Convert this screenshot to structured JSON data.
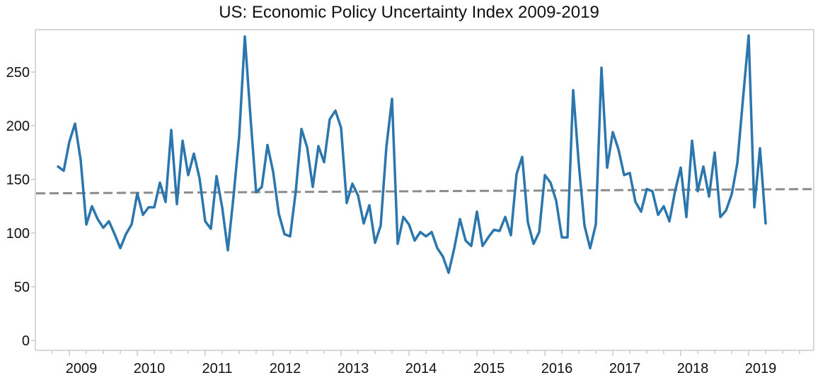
{
  "chart_data": {
    "type": "line",
    "title": "US: Economic Policy Uncertainty Index 2009-2019",
    "xlabel": "",
    "ylabel": "",
    "ylim": [
      0,
      290
    ],
    "x_tick_labels": [
      "2009",
      "2010",
      "2011",
      "2012",
      "2013",
      "2014",
      "2015",
      "2016",
      "2017",
      "2018",
      "2019"
    ],
    "y_tick_labels": [
      "0",
      "50",
      "100",
      "150",
      "200",
      "250"
    ],
    "y_ticks": [
      0,
      50,
      100,
      150,
      200,
      250
    ],
    "grid": false,
    "colors": {
      "series": "#2a76ad",
      "trend": "#8c8c8c"
    },
    "series": [
      {
        "x": [
          "2008-11",
          "2008-12",
          "2009-01",
          "2009-02",
          "2009-03",
          "2009-04",
          "2009-05",
          "2009-06",
          "2009-07",
          "2009-08",
          "2009-09",
          "2009-10",
          "2009-11",
          "2009-12",
          "2010-01",
          "2010-02",
          "2010-03",
          "2010-04",
          "2010-05",
          "2010-06",
          "2010-07",
          "2010-08",
          "2010-09",
          "2010-10",
          "2010-11",
          "2010-12",
          "2011-01",
          "2011-02",
          "2011-03",
          "2011-04",
          "2011-05",
          "2011-06",
          "2011-07",
          "2011-08",
          "2011-09",
          "2011-10",
          "2011-11",
          "2011-12",
          "2012-01",
          "2012-02",
          "2012-03",
          "2012-04",
          "2012-05",
          "2012-06",
          "2012-07",
          "2012-08",
          "2012-09",
          "2012-10",
          "2012-11",
          "2012-12",
          "2013-01",
          "2013-02",
          "2013-03",
          "2013-04",
          "2013-05",
          "2013-06",
          "2013-07",
          "2013-08",
          "2013-09",
          "2013-10",
          "2013-11",
          "2013-12",
          "2014-01",
          "2014-02",
          "2014-03",
          "2014-04",
          "2014-05",
          "2014-06",
          "2014-07",
          "2014-08",
          "2014-09",
          "2014-10",
          "2014-11",
          "2014-12",
          "2015-01",
          "2015-02",
          "2015-03",
          "2015-04",
          "2015-05",
          "2015-06",
          "2015-07",
          "2015-08",
          "2015-09",
          "2015-10",
          "2015-11",
          "2015-12",
          "2016-01",
          "2016-02",
          "2016-03",
          "2016-04",
          "2016-05",
          "2016-06",
          "2016-07",
          "2016-08",
          "2016-09",
          "2016-10",
          "2016-11",
          "2016-12",
          "2017-01",
          "2017-02",
          "2017-03",
          "2017-04",
          "2017-05",
          "2017-06",
          "2017-07",
          "2017-08",
          "2017-09",
          "2017-10",
          "2017-11",
          "2017-12",
          "2018-01",
          "2018-02",
          "2018-03",
          "2018-04",
          "2018-05",
          "2018-06",
          "2018-07",
          "2018-08",
          "2018-09",
          "2018-10",
          "2018-11",
          "2018-12",
          "2019-01",
          "2019-02",
          "2019-03",
          "2019-04"
        ],
        "values": [
          162,
          158,
          185,
          202,
          168,
          108,
          125,
          113,
          105,
          111,
          99,
          86,
          99,
          108,
          137,
          117,
          124,
          124,
          147,
          129,
          196,
          127,
          186,
          154,
          174,
          151,
          111,
          104,
          153,
          124,
          84,
          134,
          190,
          283,
          208,
          138,
          143,
          182,
          157,
          118,
          99,
          97,
          139,
          197,
          180,
          143,
          181,
          166,
          206,
          214,
          198,
          128,
          146,
          135,
          109,
          126,
          91,
          107,
          180,
          225,
          90,
          115,
          108,
          93,
          101,
          97,
          101,
          86,
          78,
          63,
          86,
          113,
          93,
          88,
          120,
          88,
          96,
          103,
          102,
          115,
          98,
          155,
          171,
          110,
          90,
          101,
          154,
          147,
          130,
          96,
          96,
          233,
          164,
          107,
          86,
          108,
          254,
          161,
          194,
          178,
          154,
          156,
          129,
          120,
          141,
          139,
          117,
          125,
          111,
          139,
          161,
          115,
          186,
          139,
          162,
          134,
          175,
          115,
          121,
          136,
          165,
          225,
          284,
          124,
          179,
          109
        ]
      }
    ],
    "trend": {
      "start": 137,
      "end": 141
    }
  }
}
